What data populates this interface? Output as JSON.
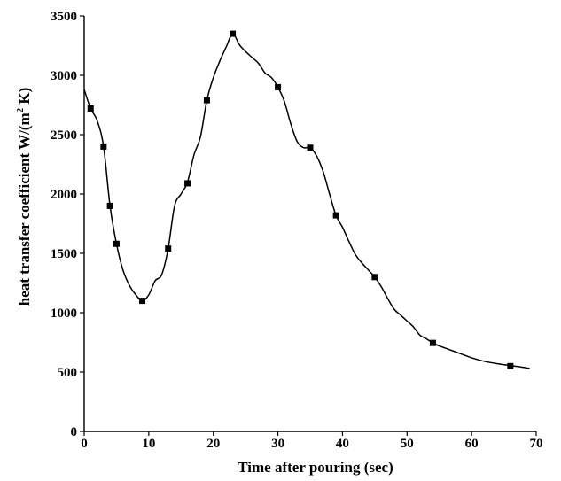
{
  "chart_data": {
    "type": "line",
    "xlabel": "Time after pouring (sec)",
    "ylabel_main": "heat  transfer coefficient  W/(m",
    "ylabel_sup": "2",
    "ylabel_end": " K)",
    "xlim": [
      0,
      70
    ],
    "ylim": [
      0,
      3500
    ],
    "x_ticks": [
      0,
      10,
      20,
      30,
      40,
      50,
      60,
      70
    ],
    "y_ticks": [
      0,
      500,
      1000,
      1500,
      2000,
      2500,
      3000,
      3500
    ],
    "grid": false,
    "curve": {
      "x": [
        0,
        1,
        2,
        3,
        4,
        5,
        6,
        7,
        8,
        9,
        10,
        11,
        12,
        13,
        14,
        15,
        16,
        17,
        18,
        19,
        20,
        21,
        22,
        23,
        24,
        25,
        26,
        27,
        28,
        29,
        30,
        31,
        32,
        33,
        34,
        35,
        36,
        37,
        38,
        39,
        40,
        41,
        42,
        43,
        44,
        45,
        46,
        47,
        48,
        49,
        50,
        51,
        52,
        53,
        54,
        55,
        56,
        57,
        58,
        59,
        60,
        62,
        64,
        66,
        68,
        69
      ],
      "y": [
        2880,
        2720,
        2620,
        2400,
        1900,
        1580,
        1360,
        1230,
        1150,
        1100,
        1150,
        1270,
        1320,
        1540,
        1900,
        2000,
        2100,
        2330,
        2480,
        2790,
        2980,
        3120,
        3240,
        3350,
        3260,
        3200,
        3150,
        3100,
        3020,
        2980,
        2900,
        2780,
        2590,
        2440,
        2390,
        2390,
        2320,
        2190,
        2000,
        1820,
        1720,
        1600,
        1490,
        1420,
        1360,
        1300,
        1220,
        1120,
        1030,
        980,
        930,
        880,
        810,
        780,
        745,
        720,
        700,
        680,
        660,
        640,
        620,
        590,
        570,
        555,
        540,
        530
      ]
    },
    "markers": {
      "x": [
        1,
        3,
        4,
        5,
        9,
        13,
        16,
        19,
        23,
        30,
        35,
        39,
        45,
        54,
        66
      ],
      "y": [
        2720,
        2400,
        1900,
        1580,
        1100,
        1540,
        2090,
        2790,
        3350,
        2900,
        2390,
        1820,
        1300,
        745,
        550
      ]
    }
  }
}
